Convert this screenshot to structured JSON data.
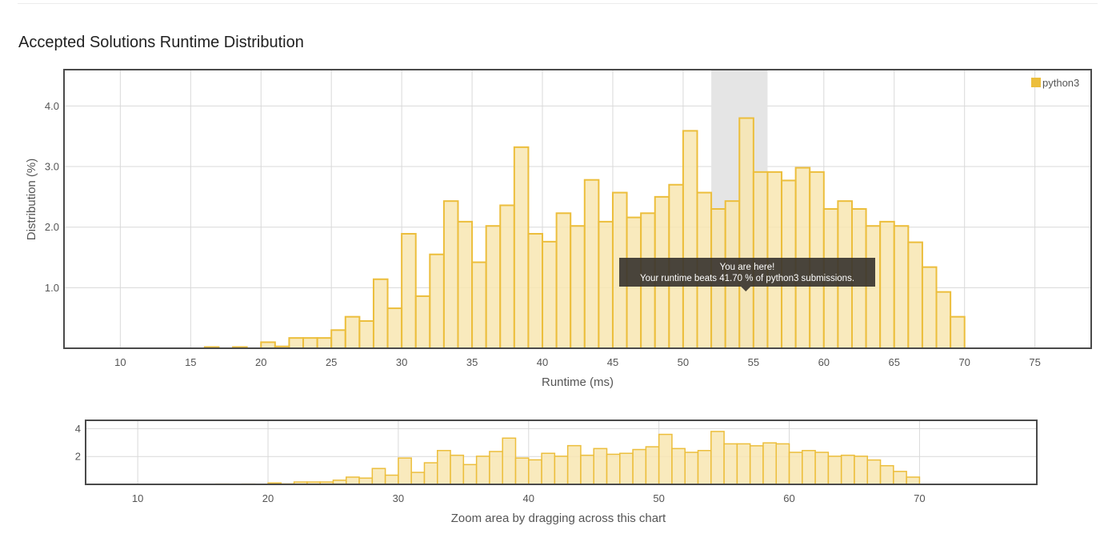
{
  "header": {
    "title": "Accepted Solutions Runtime Distribution"
  },
  "colors": {
    "bar_fill": "#f8e6b2",
    "bar_stroke": "#ecbe3c",
    "highlight_band": "#e5e5e5",
    "tooltip_bg": "#3a3530",
    "frame": "#4a4a4a",
    "grid": "#d9d9d9"
  },
  "tooltip": {
    "line1": "You are here!",
    "line2": "Your runtime beats 41.70 % of python3 submissions."
  },
  "navigator": {
    "caption": "Zoom area by dragging across this chart"
  },
  "chart_data": [
    {
      "type": "bar",
      "xlabel": "Runtime (ms)",
      "ylabel": "Distribution (%)",
      "xlim": [
        6,
        79
      ],
      "ylim": [
        0,
        4.6
      ],
      "xticks": [
        10,
        15,
        20,
        25,
        30,
        35,
        40,
        45,
        50,
        55,
        60,
        65,
        70,
        75
      ],
      "yticks": [
        1.0,
        2.0,
        3.0,
        4.0
      ],
      "ytick_labels": [
        "1.0",
        "2.0",
        "3.0",
        "4.0"
      ],
      "grid": true,
      "legend": "top-right",
      "bin_width": 1,
      "highlight_range": [
        52,
        56
      ],
      "series": [
        {
          "name": "python3",
          "x": [
            16,
            18,
            20,
            21,
            22,
            23,
            24,
            25,
            26,
            27,
            28,
            29,
            30,
            31,
            32,
            33,
            34,
            35,
            36,
            37,
            38,
            39,
            40,
            41,
            42,
            43,
            44,
            45,
            46,
            47,
            48,
            49,
            50,
            51,
            52,
            53,
            54,
            55,
            56,
            57,
            58,
            59,
            60,
            61,
            62,
            63,
            64,
            65,
            66,
            67,
            68,
            69
          ],
          "values": [
            0.02,
            0.02,
            0.1,
            0.03,
            0.17,
            0.17,
            0.17,
            0.3,
            0.52,
            0.45,
            1.14,
            0.66,
            1.89,
            0.86,
            1.55,
            2.43,
            2.09,
            1.42,
            2.02,
            2.36,
            3.32,
            1.89,
            1.76,
            2.23,
            2.02,
            2.78,
            2.09,
            2.57,
            2.16,
            2.23,
            2.5,
            2.7,
            3.59,
            2.57,
            2.3,
            2.43,
            3.8,
            2.91,
            2.91,
            2.77,
            2.98,
            2.91,
            2.3,
            2.43,
            2.3,
            2.02,
            2.09,
            2.02,
            1.75,
            1.34,
            0.93,
            0.52
          ]
        }
      ]
    },
    {
      "type": "bar",
      "xlabel": "",
      "ylabel": "",
      "xlim": [
        6,
        79
      ],
      "ylim": [
        0,
        4.6
      ],
      "xticks": [
        10,
        20,
        30,
        40,
        50,
        60,
        70
      ],
      "yticks": [
        2,
        4
      ],
      "ytick_labels": [
        "2",
        "4"
      ],
      "grid": true,
      "series_ref": 0
    }
  ]
}
